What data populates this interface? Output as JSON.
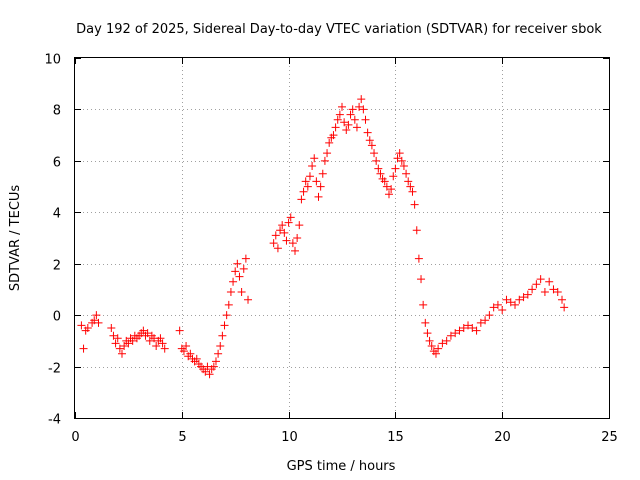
{
  "chart_data": {
    "type": "scatter",
    "title": "Day 192 of 2025, Sidereal Day-to-day VTEC variation (SDTVAR) for receiver sbok",
    "xlabel": "GPS time / hours",
    "ylabel": "SDTVAR / TECUs",
    "xlim": [
      0,
      25
    ],
    "ylim": [
      -4,
      10
    ],
    "xticks": [
      0,
      5,
      10,
      15,
      20,
      25
    ],
    "xtick_labels": [
      "0",
      "5",
      "10",
      "15",
      "20",
      "25"
    ],
    "yticks": [
      -4,
      -2,
      0,
      2,
      4,
      6,
      8,
      10
    ],
    "ytick_labels": [
      "-4",
      "-2",
      "0",
      "2",
      "4",
      "6",
      "8",
      "10"
    ],
    "grid": true,
    "marker": "plus",
    "color": "#ff0000",
    "series": [
      {
        "name": "SDTVAR",
        "x": [
          0.3,
          0.4,
          0.5,
          0.6,
          0.8,
          0.9,
          1.0,
          1.1,
          1.7,
          1.8,
          1.9,
          2.0,
          2.1,
          2.2,
          2.3,
          2.4,
          2.5,
          2.6,
          2.7,
          2.8,
          2.9,
          3.0,
          3.1,
          3.2,
          3.3,
          3.4,
          3.5,
          3.6,
          3.7,
          3.8,
          3.9,
          4.0,
          4.1,
          4.2,
          4.9,
          5.0,
          5.1,
          5.2,
          5.3,
          5.4,
          5.5,
          5.6,
          5.7,
          5.8,
          5.9,
          6.0,
          6.1,
          6.2,
          6.3,
          6.4,
          6.5,
          6.6,
          6.7,
          6.8,
          6.9,
          7.0,
          7.1,
          7.2,
          7.3,
          7.4,
          7.5,
          7.6,
          7.7,
          7.8,
          7.9,
          8.0,
          8.1,
          9.3,
          9.4,
          9.5,
          9.6,
          9.7,
          9.8,
          9.9,
          10.0,
          10.1,
          10.2,
          10.3,
          10.4,
          10.5,
          10.6,
          10.7,
          10.8,
          10.9,
          11.0,
          11.1,
          11.2,
          11.3,
          11.4,
          11.5,
          11.6,
          11.7,
          11.8,
          11.9,
          12.0,
          12.1,
          12.2,
          12.3,
          12.4,
          12.5,
          12.6,
          12.7,
          12.8,
          12.9,
          13.0,
          13.1,
          13.2,
          13.3,
          13.4,
          13.5,
          13.6,
          13.7,
          13.8,
          13.9,
          14.0,
          14.1,
          14.2,
          14.3,
          14.4,
          14.5,
          14.6,
          14.7,
          14.8,
          14.9,
          15.0,
          15.1,
          15.2,
          15.3,
          15.4,
          15.5,
          15.6,
          15.7,
          15.8,
          15.9,
          16.0,
          16.1,
          16.2,
          16.3,
          16.4,
          16.5,
          16.6,
          16.7,
          16.8,
          16.9,
          17.0,
          17.2,
          17.4,
          17.6,
          17.8,
          18.0,
          18.2,
          18.4,
          18.6,
          18.8,
          19.0,
          19.2,
          19.4,
          19.6,
          19.8,
          20.0,
          20.2,
          20.4,
          20.6,
          20.8,
          21.0,
          21.2,
          21.4,
          21.6,
          21.8,
          22.0,
          22.2,
          22.4,
          22.6,
          22.8,
          22.9
        ],
        "y": [
          -0.4,
          -1.3,
          -0.6,
          -0.5,
          -0.3,
          -0.2,
          0.0,
          -0.3,
          -0.5,
          -0.8,
          -1.1,
          -0.9,
          -1.3,
          -1.5,
          -1.2,
          -1.0,
          -1.1,
          -0.9,
          -1.0,
          -0.8,
          -0.9,
          -0.8,
          -0.7,
          -0.6,
          -0.8,
          -0.7,
          -1.0,
          -0.8,
          -0.9,
          -1.2,
          -1.0,
          -0.9,
          -1.1,
          -1.3,
          -0.6,
          -1.3,
          -1.4,
          -1.2,
          -1.6,
          -1.5,
          -1.7,
          -1.8,
          -1.7,
          -1.9,
          -2.0,
          -2.1,
          -2.2,
          -2.0,
          -2.3,
          -2.1,
          -2.0,
          -1.8,
          -1.5,
          -1.2,
          -0.8,
          -0.4,
          0.0,
          0.4,
          0.9,
          1.3,
          1.7,
          2.0,
          1.5,
          0.9,
          1.8,
          2.2,
          0.6,
          2.8,
          3.1,
          2.6,
          3.3,
          3.5,
          3.2,
          2.9,
          3.6,
          3.8,
          2.8,
          2.5,
          3.0,
          3.5,
          4.5,
          4.8,
          5.2,
          5.0,
          5.4,
          5.8,
          6.1,
          5.2,
          4.6,
          5.0,
          5.5,
          6.0,
          6.3,
          6.7,
          6.9,
          7.0,
          7.3,
          7.6,
          7.8,
          8.1,
          7.5,
          7.2,
          7.4,
          7.8,
          8.0,
          7.6,
          7.3,
          8.1,
          8.4,
          8.0,
          7.6,
          7.1,
          6.8,
          6.6,
          6.3,
          6.0,
          5.7,
          5.5,
          5.3,
          5.2,
          5.0,
          4.7,
          4.9,
          5.4,
          5.7,
          6.1,
          6.3,
          6.0,
          5.8,
          5.5,
          5.2,
          5.0,
          4.8,
          4.3,
          3.3,
          2.2,
          1.4,
          0.4,
          -0.3,
          -0.7,
          -1.0,
          -1.2,
          -1.4,
          -1.5,
          -1.3,
          -1.1,
          -1.0,
          -0.8,
          -0.7,
          -0.6,
          -0.5,
          -0.4,
          -0.5,
          -0.6,
          -0.3,
          -0.2,
          0.0,
          0.3,
          0.4,
          0.2,
          0.6,
          0.5,
          0.4,
          0.6,
          0.7,
          0.8,
          1.0,
          1.2,
          1.4,
          0.9,
          1.3,
          1.0,
          0.9,
          0.6,
          0.3
        ]
      }
    ]
  }
}
